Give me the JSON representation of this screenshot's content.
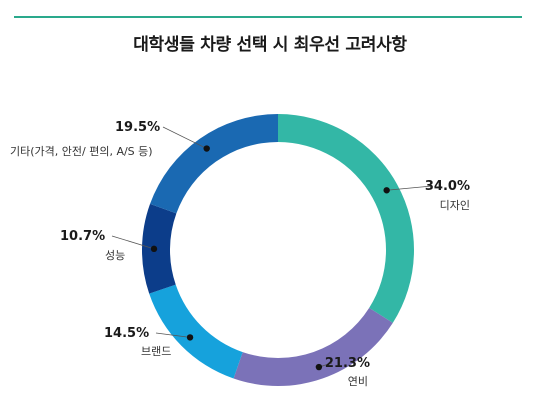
{
  "chart_data": {
    "type": "pie",
    "title": "대학생들 차량 선택 시 최우선 고려사항",
    "categories": [
      "디자인",
      "연비",
      "브랜드",
      "성능",
      "기타(가격, 안전/ 편의, A/S 등)"
    ],
    "values": [
      34.0,
      21.3,
      14.5,
      10.7,
      19.5
    ],
    "value_labels": [
      "34.0%",
      "21.3%",
      "14.5%",
      "10.7%",
      "19.5%"
    ],
    "colors": [
      "#33b7a6",
      "#7b72b8",
      "#16a2dc",
      "#0c3d8a",
      "#1a69b2"
    ],
    "donut": true,
    "start_angle_deg": 0,
    "direction": "clockwise",
    "legend": "none"
  },
  "header": {
    "accent_color": "#2aa98c"
  }
}
